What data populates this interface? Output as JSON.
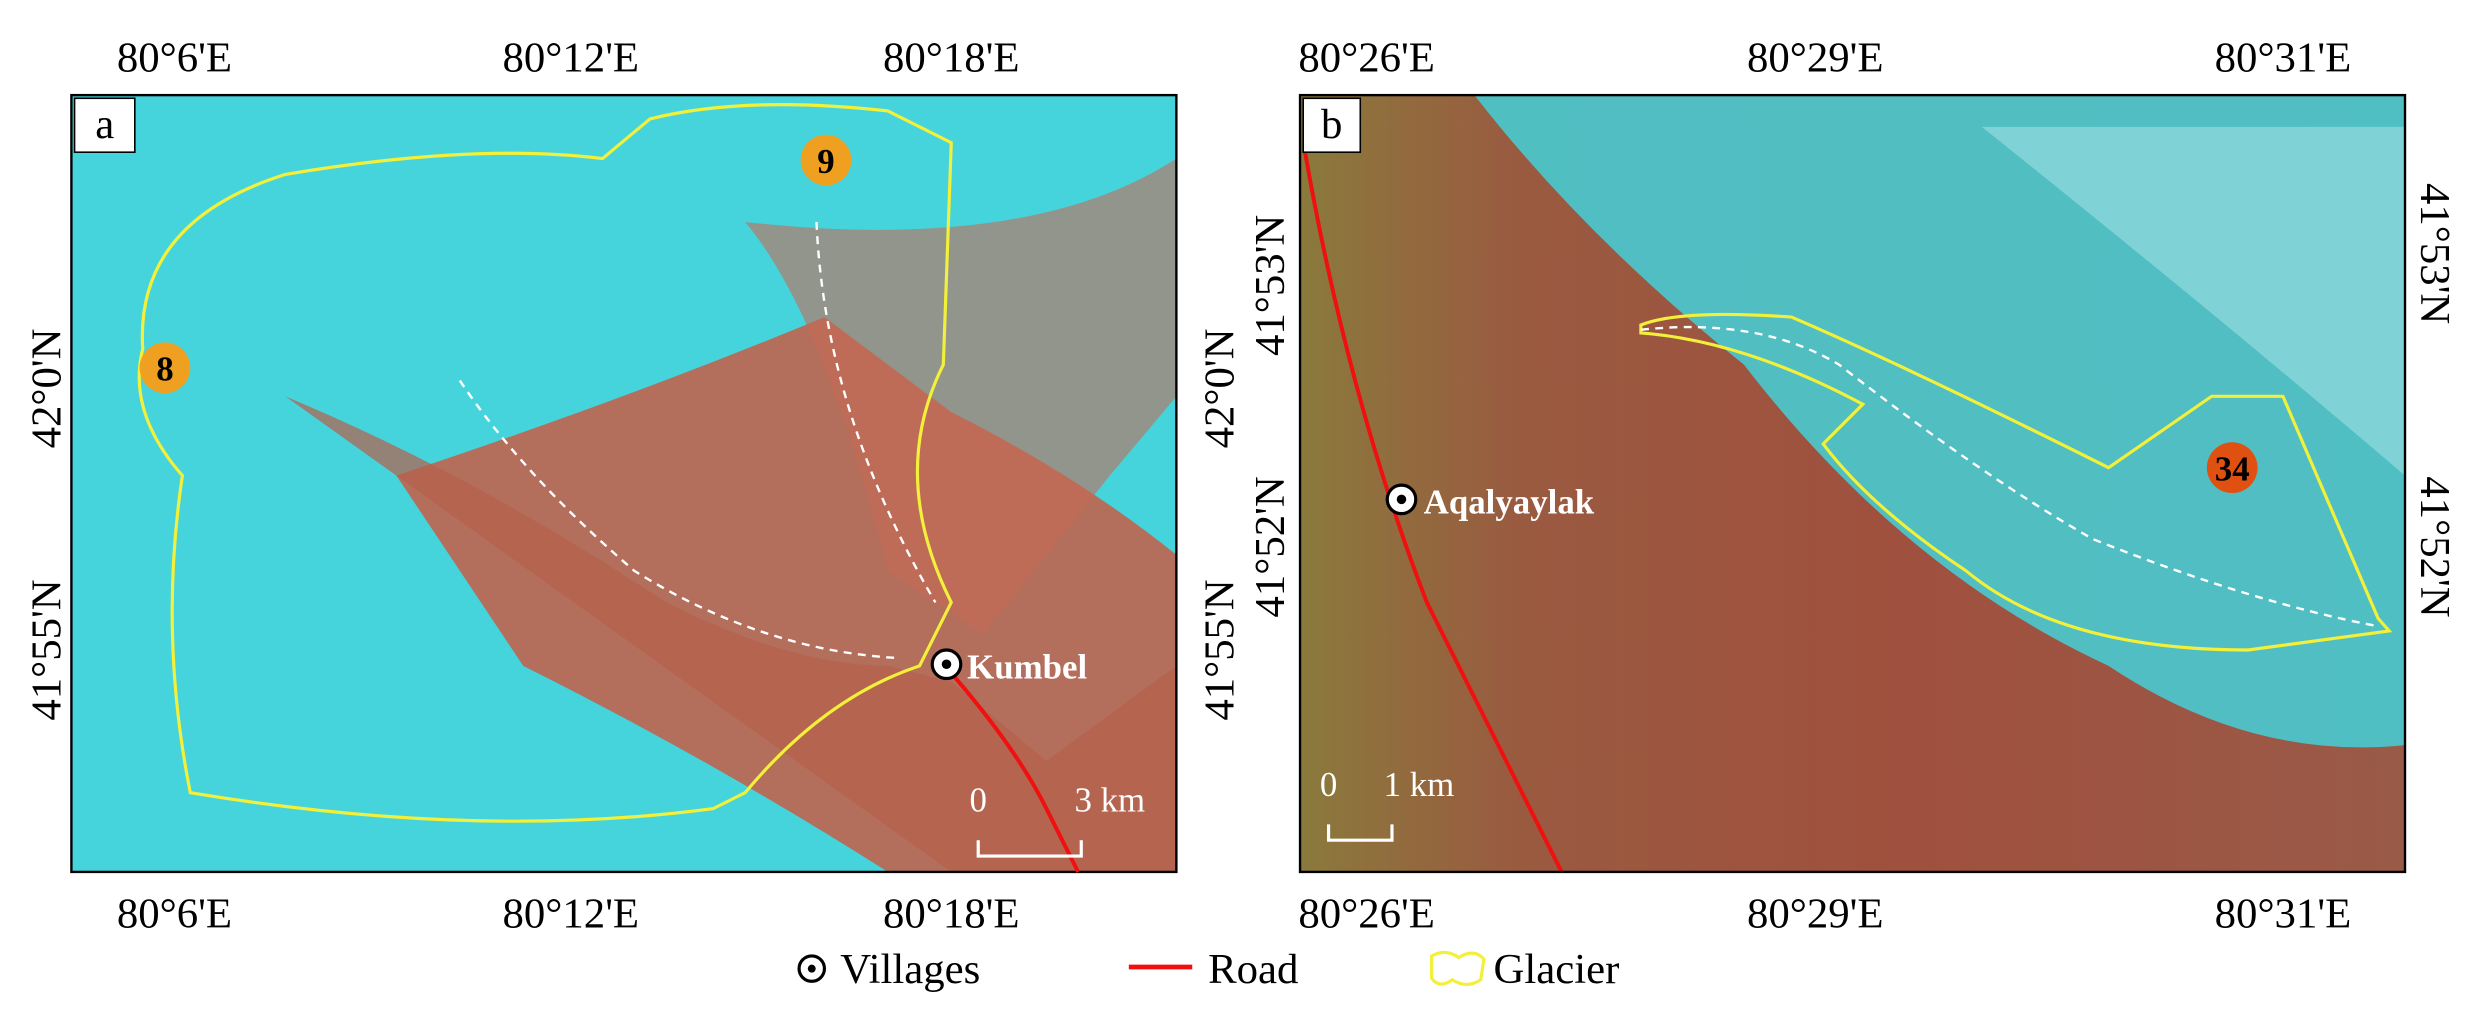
{
  "panels": [
    {
      "label": "a",
      "top_ticks": [
        "80°6'E",
        "80°12'E",
        "80°18'E"
      ],
      "bottom_ticks": [
        "80°6'E",
        "80°12'E",
        "80°18'E"
      ],
      "left_ticks": [
        "42°0'N",
        "41°55'N"
      ],
      "right_ticks": [
        "42°0'N",
        "41°55'N"
      ],
      "markers": [
        "9",
        "8"
      ],
      "village": "Kumbel",
      "scale": [
        "0",
        "3 km"
      ]
    },
    {
      "label": "b",
      "top_ticks": [
        "80°26'E",
        "80°29'E",
        "80°31'E"
      ],
      "bottom_ticks": [
        "80°26'E",
        "80°29'E",
        "80°31'E"
      ],
      "left_ticks": [
        "41°53'N",
        "41°52'N"
      ],
      "right_ticks": [
        "41°53'N",
        "41°52'N"
      ],
      "markers": [
        "34"
      ],
      "village": "Aqalyaylak",
      "scale": [
        "0",
        "1 km"
      ]
    }
  ],
  "legend": [
    "Villages",
    "Road",
    "Glacier"
  ]
}
